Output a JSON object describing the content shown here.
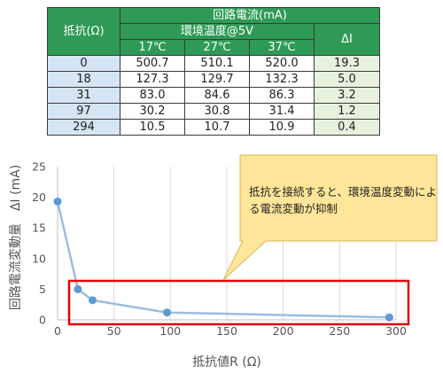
{
  "table": {
    "resistance_header": "抵抗(Ω)",
    "current_header": "回路電流(mA)",
    "temp_header": "環境温度@5V",
    "delta_header": "ΔI",
    "temps": [
      "17℃",
      "27℃",
      "37℃"
    ],
    "rows": [
      {
        "r": "0",
        "v": [
          "500.7",
          "510.1",
          "520.0"
        ],
        "d": "19.3"
      },
      {
        "r": "18",
        "v": [
          "127.3",
          "129.7",
          "132.3"
        ],
        "d": "5.0"
      },
      {
        "r": "31",
        "v": [
          "83.0",
          "84.6",
          "86.3"
        ],
        "d": "3.2"
      },
      {
        "r": "97",
        "v": [
          "30.2",
          "30.8",
          "31.4"
        ],
        "d": "1.2"
      },
      {
        "r": "294",
        "v": [
          "10.5",
          "10.7",
          "10.9"
        ],
        "d": "0.4"
      }
    ]
  },
  "chart_data": {
    "type": "line",
    "x": [
      0,
      18,
      31,
      97,
      294
    ],
    "y": [
      19.3,
      5.0,
      3.2,
      1.2,
      0.4
    ],
    "xlabel": "抵抗値R (Ω)",
    "ylabel": "回路電流変動量　ΔI (mA)",
    "xlim": [
      0,
      300
    ],
    "ylim": [
      0,
      25
    ],
    "xticks": [
      0,
      50,
      100,
      150,
      200,
      250,
      300
    ],
    "yticks": [
      0,
      5,
      10,
      15,
      20,
      25
    ],
    "grid": "vertical",
    "annotation": "抵抗を接続すると、環境温度変動による電流変動が抑制",
    "colors": {
      "line": "#9bbde0",
      "marker": "#5b9bd5",
      "highlight": "#e00000",
      "callout_fill": "#ffe699",
      "callout_stroke": "#d6b656"
    }
  }
}
